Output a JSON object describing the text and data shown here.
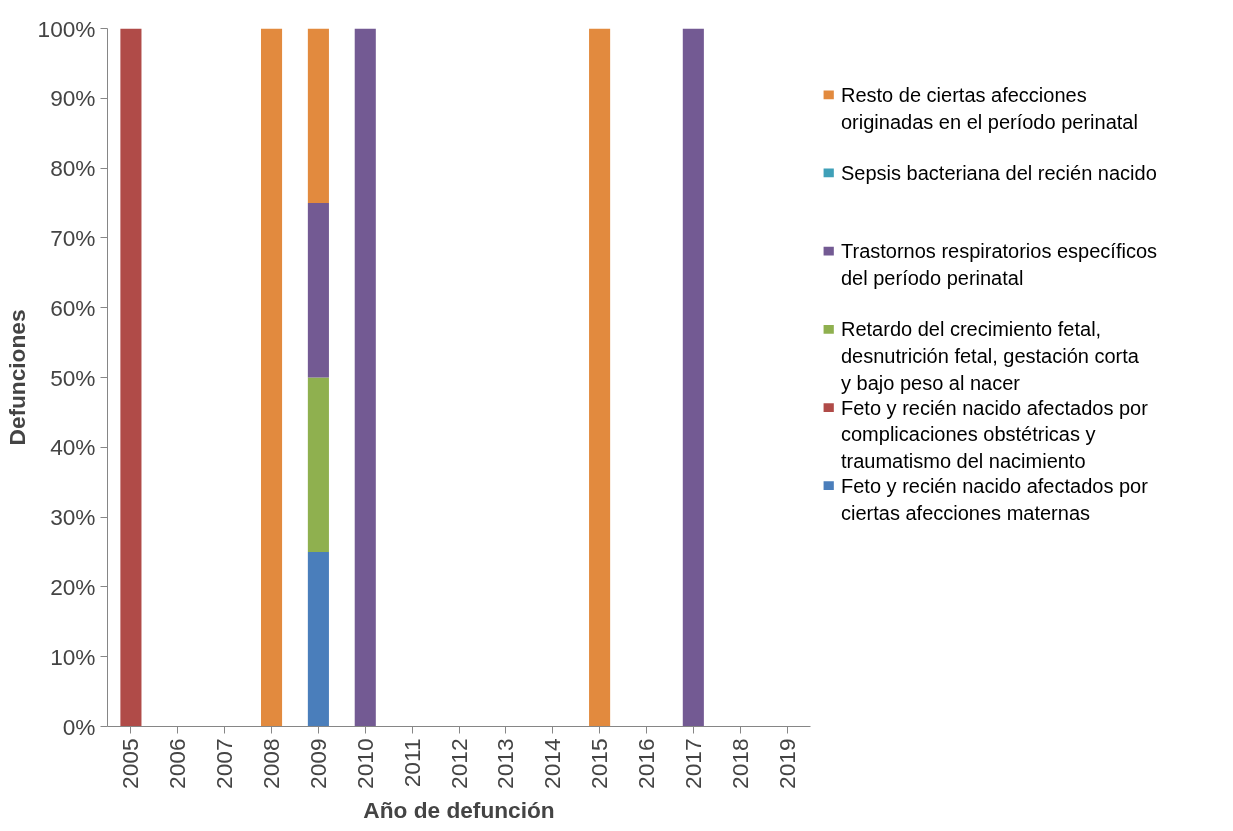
{
  "chart_data": {
    "type": "bar",
    "stacked": true,
    "xlabel": "Año de defunción",
    "ylabel": "Defunciones",
    "categories": [
      "2005",
      "2006",
      "2007",
      "2008",
      "2009",
      "2010",
      "2011",
      "2012",
      "2013",
      "2014",
      "2015",
      "2016",
      "2017",
      "2018",
      "2019"
    ],
    "series": [
      {
        "name": "Feto y recién nacido afectados por ciertas afecciones maternas",
        "color": "#4a7ebb",
        "values": [
          0,
          0,
          0,
          0,
          25,
          0,
          0,
          0,
          0,
          0,
          0,
          0,
          0,
          0,
          0
        ]
      },
      {
        "name": "Feto y recién nacido afectados por complicaciones obstétricas y traumatismo del nacimiento",
        "color": "#b04b48",
        "values": [
          100,
          0,
          0,
          0,
          0,
          0,
          0,
          0,
          0,
          0,
          0,
          0,
          0,
          0,
          0
        ]
      },
      {
        "name": "Retardo del crecimiento fetal, desnutrición fetal, gestación corta y bajo peso al nacer",
        "color": "#8fb04f",
        "values": [
          0,
          0,
          0,
          0,
          25,
          0,
          0,
          0,
          0,
          0,
          0,
          0,
          0,
          0,
          0
        ]
      },
      {
        "name": "Trastornos respiratorios específicos del período perinatal",
        "color": "#735a93",
        "values": [
          0,
          0,
          0,
          0,
          25,
          100,
          0,
          0,
          0,
          0,
          0,
          0,
          100,
          0,
          0
        ]
      },
      {
        "name": "Sepsis bacteriana del recién nacido",
        "color": "#3fa0b8",
        "values": [
          0,
          0,
          0,
          0,
          0,
          0,
          0,
          0,
          0,
          0,
          0,
          0,
          0,
          0,
          0
        ]
      },
      {
        "name": "Resto de ciertas afecciones originadas en el período perinatal",
        "color": "#e28a3e",
        "values": [
          0,
          0,
          0,
          100,
          25,
          0,
          0,
          0,
          0,
          0,
          100,
          0,
          0,
          0,
          0
        ]
      }
    ],
    "ylim": [
      0,
      100
    ],
    "yticks": [
      {
        "value": 0,
        "label": "0%"
      },
      {
        "value": 10,
        "label": "10%"
      },
      {
        "value": 20,
        "label": "20%"
      },
      {
        "value": 30,
        "label": "30%"
      },
      {
        "value": 40,
        "label": "40%"
      },
      {
        "value": 50,
        "label": "50%"
      },
      {
        "value": 60,
        "label": "60%"
      },
      {
        "value": 70,
        "label": "70%"
      },
      {
        "value": 80,
        "label": "80%"
      },
      {
        "value": 90,
        "label": "90%"
      },
      {
        "value": 100,
        "label": "100%"
      }
    ],
    "grid": false,
    "legend": "right"
  }
}
